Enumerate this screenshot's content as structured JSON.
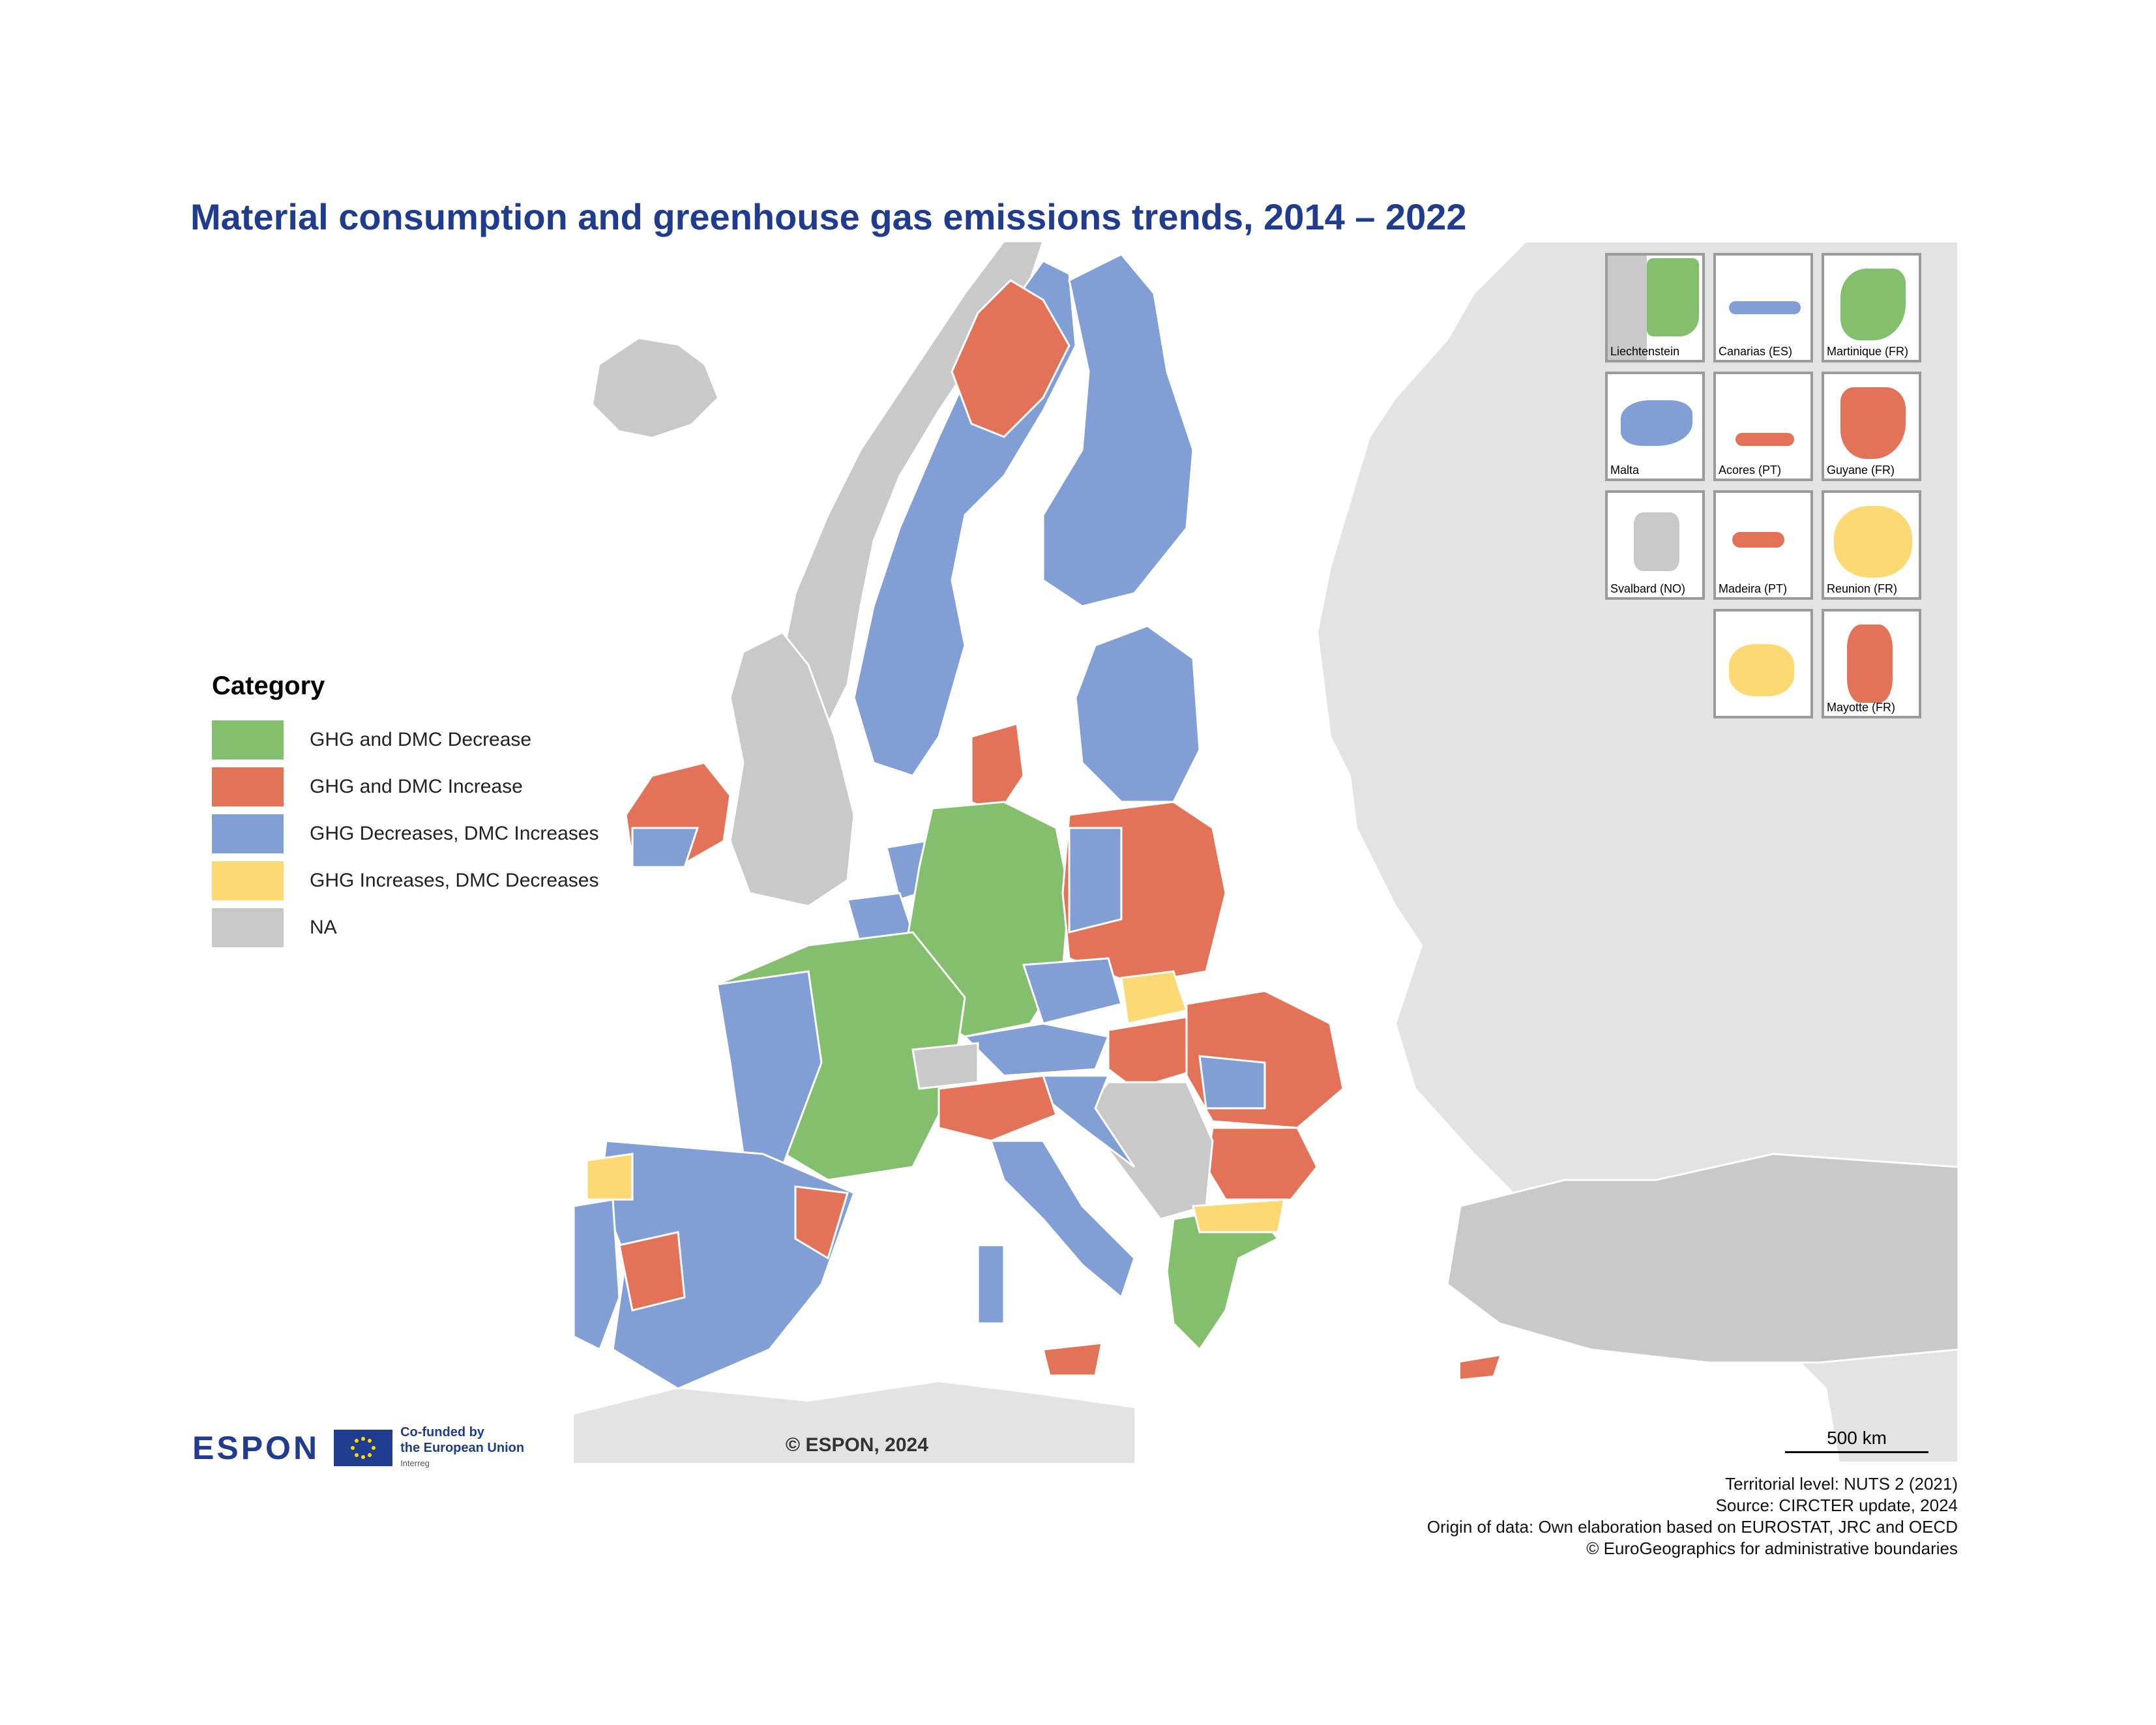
{
  "title": "Material consumption and greenhouse gas emissions trends, 2014 – 2022",
  "colors": {
    "green": "#84bf6e",
    "red": "#e27358",
    "blue": "#829fd5",
    "yellow": "#fdd974",
    "na": "#c9c9c9",
    "land_outside": "#e3e3e3",
    "sea": "#ffffff",
    "title": "#1f3c8f"
  },
  "legend": {
    "title": "Category",
    "items": [
      {
        "label": "GHG and DMC Decrease",
        "color": "#84bf6e"
      },
      {
        "label": "GHG and DMC Increase",
        "color": "#e27358"
      },
      {
        "label": "GHG Decreases, DMC Increases",
        "color": "#829fd5"
      },
      {
        "label": "GHG Increases, DMC Decreases",
        "color": "#fdd974"
      },
      {
        "label": "NA",
        "color": "#c9c9c9"
      }
    ]
  },
  "insets": [
    {
      "label": "Liechtenstein",
      "color": "#84bf6e"
    },
    {
      "label": "Canarias (ES)",
      "color": "#829fd5"
    },
    {
      "label": "Martinique (FR)",
      "color": "#84bf6e"
    },
    {
      "label": "Malta",
      "color": "#829fd5"
    },
    {
      "label": "Acores (PT)",
      "color": "#e27358"
    },
    {
      "label": "Guyane (FR)",
      "color": "#e27358"
    },
    {
      "label": "Svalbard (NO)",
      "color": "#c9c9c9"
    },
    {
      "label": "Madeira (PT)",
      "color": "#e27358"
    },
    {
      "label": "Reunion (FR)",
      "color": "#fdd974"
    },
    {
      "label": "",
      "color": "#fdd974"
    },
    {
      "label": "Mayotte (FR)",
      "color": "#e27358"
    }
  ],
  "logo": {
    "espon": "ESPON",
    "cofunded": "Co-funded by",
    "eu": "the European Union",
    "interreg": "Interreg"
  },
  "copyright": "© ESPON, 2024",
  "scale_label": "500 km",
  "source_lines": [
    "Territorial level: NUTS 2 (2021)",
    "Source: CIRCTER update, 2024",
    "Origin of data: Own elaboration based on EUROSTAT, JRC and OECD",
    "© EuroGeographics for administrative boundaries"
  ]
}
